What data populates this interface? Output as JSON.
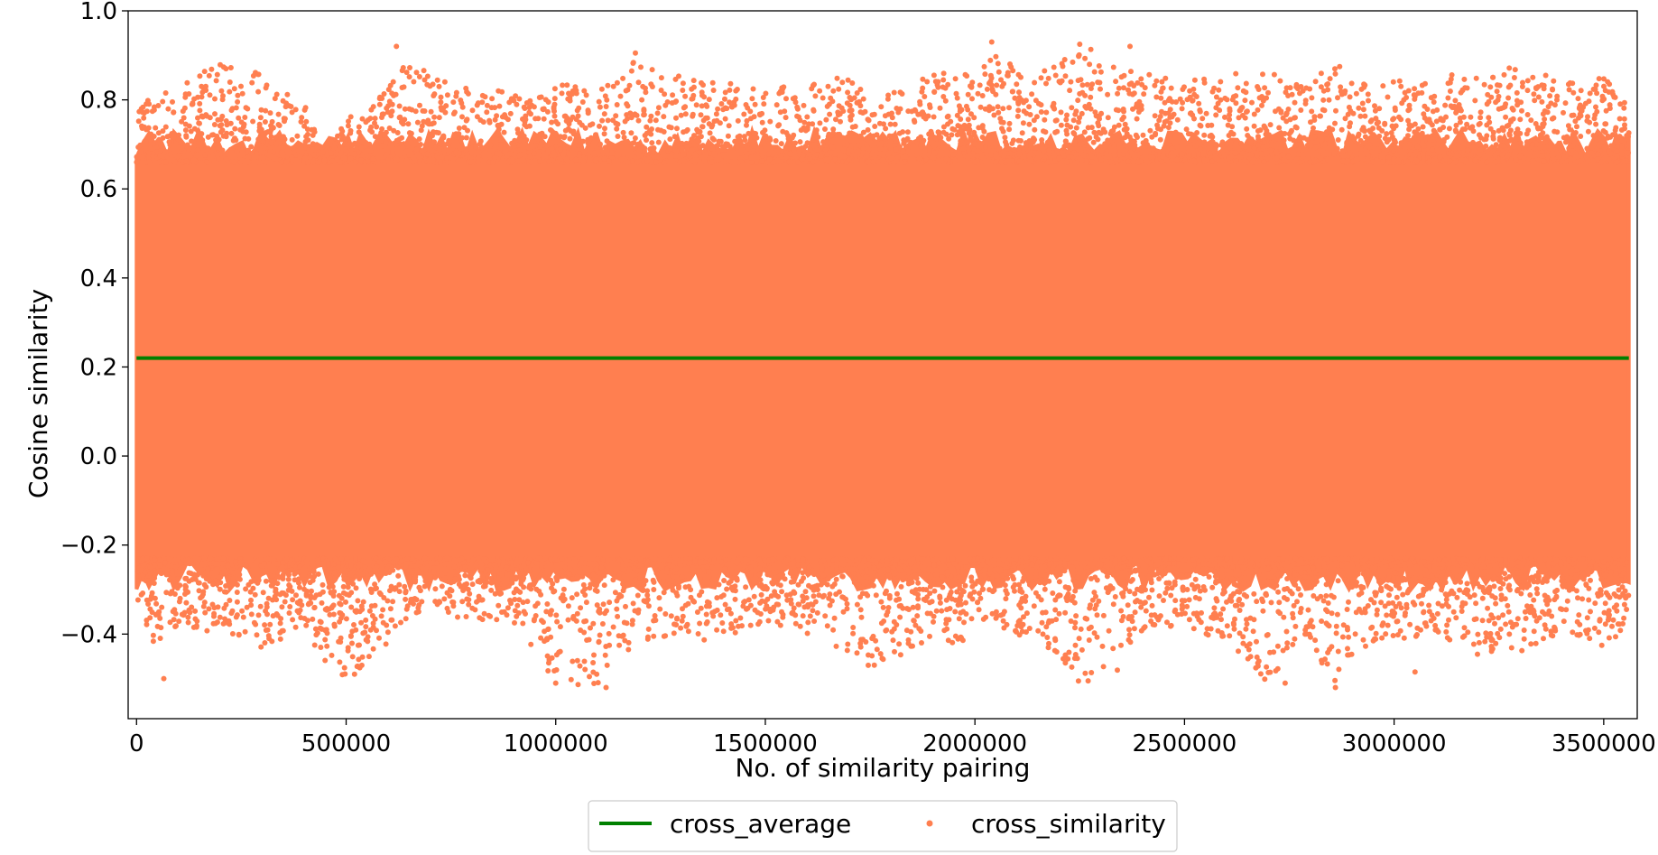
{
  "chart_data": {
    "type": "scatter",
    "title": "",
    "xlabel": "No. of similarity pairing",
    "ylabel": "Cosine similarity",
    "xlim": [
      -20000,
      3580000
    ],
    "ylim": [
      -0.59,
      1.0
    ],
    "x_ticks": [
      0,
      500000,
      1000000,
      1500000,
      2000000,
      2500000,
      3000000,
      3500000
    ],
    "x_tick_labels": [
      "0",
      "500000",
      "1000000",
      "1500000",
      "2000000",
      "2500000",
      "3000000",
      "3500000"
    ],
    "y_ticks": [
      -0.4,
      -0.2,
      0.0,
      0.2,
      0.4,
      0.6,
      0.8,
      1.0
    ],
    "y_tick_labels": [
      "−0.4",
      "−0.2",
      "0.0",
      "0.2",
      "0.4",
      "0.6",
      "0.8",
      "1.0"
    ],
    "grid": false,
    "legend_position": "bottom-center, outside plot",
    "series": [
      {
        "name": "cross_average",
        "kind": "line",
        "color": "#008000",
        "x": [
          0,
          3560000
        ],
        "y": [
          0.22,
          0.22
        ]
      },
      {
        "name": "cross_similarity",
        "kind": "scatter",
        "color": "#FF7F50",
        "n_points": 3560000,
        "x_range": [
          0,
          3560000
        ],
        "dense_band": {
          "lower_envelope": -0.27,
          "upper_envelope": 0.7
        },
        "envelope": {
          "x": [
            0,
            100000,
            200000,
            300000,
            400000,
            450000,
            500000,
            550000,
            650000,
            700000,
            800000,
            900000,
            1000000,
            1100000,
            1200000,
            1300000,
            1400000,
            1500000,
            1600000,
            1700000,
            1760000,
            1800000,
            1900000,
            2000000,
            2050000,
            2100000,
            2200000,
            2250000,
            2300000,
            2330000,
            2400000,
            2500000,
            2600000,
            2700000,
            2800000,
            2850000,
            2900000,
            3000000,
            3100000,
            3200000,
            3300000,
            3400000,
            3500000,
            3560000
          ],
          "y_max": [
            0.78,
            0.85,
            0.88,
            0.86,
            0.8,
            0.67,
            0.76,
            0.77,
            0.92,
            0.85,
            0.83,
            0.82,
            0.84,
            0.82,
            0.9,
            0.85,
            0.84,
            0.82,
            0.84,
            0.86,
            0.8,
            0.82,
            0.86,
            0.87,
            0.93,
            0.86,
            0.88,
            0.93,
            0.9,
            0.88,
            0.86,
            0.84,
            0.87,
            0.86,
            0.84,
            0.89,
            0.86,
            0.84,
            0.86,
            0.85,
            0.88,
            0.84,
            0.85,
            0.82
          ],
          "y_min": [
            -0.44,
            -0.39,
            -0.4,
            -0.43,
            -0.39,
            -0.46,
            -0.5,
            -0.48,
            -0.38,
            -0.37,
            -0.36,
            -0.39,
            -0.51,
            -0.52,
            -0.42,
            -0.4,
            -0.43,
            -0.37,
            -0.4,
            -0.44,
            -0.48,
            -0.46,
            -0.41,
            -0.43,
            -0.38,
            -0.41,
            -0.45,
            -0.51,
            -0.47,
            -0.5,
            -0.39,
            -0.38,
            -0.42,
            -0.51,
            -0.41,
            -0.52,
            -0.46,
            -0.42,
            -0.4,
            -0.45,
            -0.44,
            -0.4,
            -0.43,
            -0.39
          ]
        },
        "outliers": [
          [
            620000,
            0.92
          ],
          [
            1190000,
            0.905
          ],
          [
            2040000,
            0.93
          ],
          [
            2250000,
            0.925
          ],
          [
            2370000,
            0.92
          ],
          [
            1000000,
            -0.51
          ],
          [
            1120000,
            -0.52
          ],
          [
            2270000,
            -0.505
          ],
          [
            2740000,
            -0.51
          ],
          [
            2860000,
            -0.52
          ],
          [
            3050000,
            -0.485
          ],
          [
            65000,
            -0.5
          ],
          [
            520000,
            -0.49
          ],
          [
            1760000,
            -0.47
          ]
        ]
      }
    ]
  }
}
